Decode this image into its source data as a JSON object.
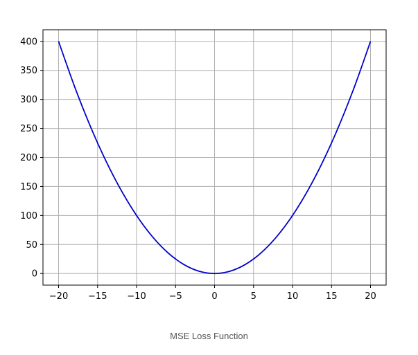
{
  "chart_data": {
    "type": "line",
    "title": "",
    "xlabel": "",
    "ylabel": "",
    "xlim": [
      -22.0,
      22.0
    ],
    "ylim": [
      -20,
      420
    ],
    "xticks": [
      -20,
      -15,
      -10,
      -5,
      0,
      5,
      10,
      15,
      20
    ],
    "xtick_labels": [
      "−20",
      "−15",
      "−10",
      "−5",
      "0",
      "5",
      "10",
      "15",
      "20"
    ],
    "yticks": [
      0,
      50,
      100,
      150,
      200,
      250,
      300,
      350,
      400
    ],
    "ytick_labels": [
      "0",
      "50",
      "100",
      "150",
      "200",
      "250",
      "300",
      "350",
      "400"
    ],
    "grid": true,
    "series": [
      {
        "color": "#0000cc",
        "x": [
          -20,
          -18,
          -16,
          -14,
          -12,
          -10,
          -8,
          -6,
          -4,
          -2,
          0,
          2,
          4,
          6,
          8,
          10,
          12,
          14,
          16,
          18,
          20
        ],
        "y": [
          400,
          324,
          256,
          196,
          144,
          100,
          64,
          36,
          16,
          4,
          0,
          4,
          16,
          36,
          64,
          100,
          144,
          196,
          256,
          324,
          400
        ]
      }
    ]
  },
  "caption": "MSE Loss Function",
  "colors": {
    "grid": "#b0b0b0",
    "frame": "#000000",
    "caption": "#555555"
  }
}
